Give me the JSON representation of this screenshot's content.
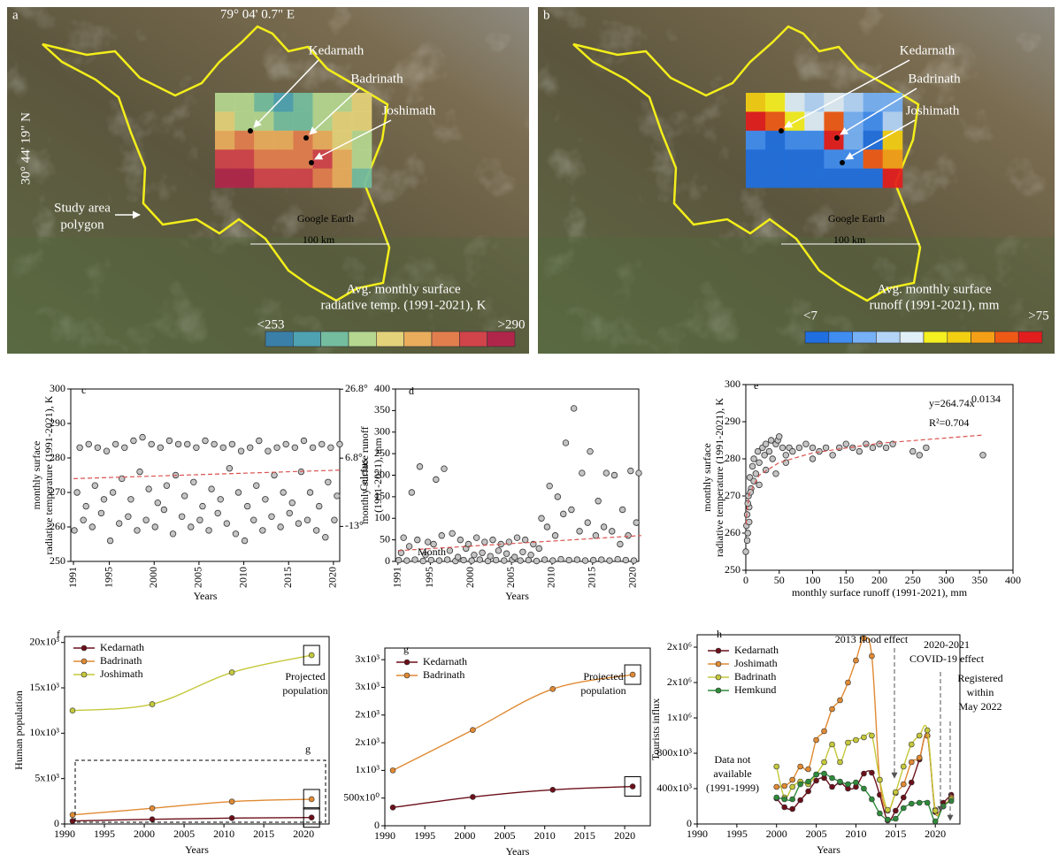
{
  "maps": [
    {
      "label": "a",
      "lon": "79° 04' 0.7\" E",
      "lat": "30° 44' 19\" N",
      "places": [
        "Kedarnath",
        "Badrinath",
        "Joshimath"
      ],
      "polygon_label": [
        "Study area",
        "polygon"
      ],
      "watermark": "Google Earth",
      "scale": "100 km",
      "legend_title": [
        "Avg. monthly surface",
        "radiative temp. (1991-2021), K"
      ],
      "legend_min": "<253",
      "legend_max": ">290",
      "legend_colors": [
        "#3a7fa8",
        "#4ea2b2",
        "#74bd9f",
        "#b5d78f",
        "#e4d27a",
        "#e9ad5c",
        "#e27e4e",
        "#d1444a",
        "#b0264a"
      ]
    },
    {
      "label": "b",
      "places": [
        "Kedarnath",
        "Badrinath",
        "Joshimath"
      ],
      "watermark": "Google Earth",
      "scale": "100 km",
      "legend_title": [
        "Avg. monthly surface",
        "runoff (1991-2021), mm"
      ],
      "legend_min": "<7",
      "legend_max": ">75",
      "legend_colors": [
        "#1f6fe0",
        "#3f8df0",
        "#76b0f5",
        "#b3d4f7",
        "#dfeef7",
        "#f5f020",
        "#f3cf12",
        "#f4a016",
        "#ee5a16",
        "#e21d1d"
      ]
    }
  ],
  "chart_data": [
    {
      "type": "scatter",
      "label": "c",
      "xlabel": "Years",
      "ylabel": [
        "monthly surface",
        "radiative temperature (1991-2021), K"
      ],
      "y2label": "Celcius",
      "x": [
        1991.1,
        1991.4,
        1991.7,
        1992.1,
        1992.4,
        1992.7,
        1993.1,
        1993.4,
        1993.7,
        1994.1,
        1994.4,
        1994.7,
        1995.1,
        1995.4,
        1995.7,
        1996.1,
        1996.4,
        1996.7,
        1997.1,
        1997.4,
        1997.7,
        1998.1,
        1998.4,
        1998.7,
        1999.1,
        1999.4,
        1999.7,
        2000.1,
        2000.4,
        2000.7,
        2001.1,
        2001.4,
        2001.7,
        2002.1,
        2002.4,
        2002.7,
        2003.1,
        2003.4,
        2003.7,
        2004.1,
        2004.4,
        2004.7,
        2005.1,
        2005.4,
        2005.7,
        2006.1,
        2006.4,
        2006.7,
        2007.1,
        2007.4,
        2007.7,
        2008.1,
        2008.4,
        2008.7,
        2009.1,
        2009.4,
        2009.7,
        2010.1,
        2010.4,
        2010.7,
        2011.1,
        2011.4,
        2011.7,
        2012.1,
        2012.4,
        2012.7,
        2013.1,
        2013.4,
        2013.7,
        2014.1,
        2014.4,
        2014.7,
        2015.1,
        2015.4,
        2015.7,
        2016.1,
        2016.4,
        2016.7,
        2017.1,
        2017.4,
        2017.7,
        2018.1,
        2018.4,
        2018.7,
        2019.1,
        2019.4,
        2019.7,
        2020.1,
        2020.4,
        2020.7
      ],
      "values": [
        259,
        270,
        283,
        262,
        266,
        284,
        260,
        272,
        283,
        264,
        268,
        282,
        256,
        270,
        284,
        261,
        274,
        283,
        263,
        268,
        285,
        259,
        276,
        286,
        262,
        271,
        284,
        260,
        267,
        283,
        265,
        272,
        285,
        258,
        275,
        284,
        263,
        269,
        284,
        260,
        273,
        283,
        262,
        266,
        285,
        259,
        271,
        284,
        264,
        268,
        283,
        261,
        277,
        284,
        258,
        270,
        282,
        256,
        266,
        283,
        262,
        272,
        285,
        259,
        268,
        282,
        263,
        275,
        283,
        260,
        270,
        284,
        264,
        267,
        283,
        261,
        276,
        285,
        262,
        270,
        283,
        259,
        266,
        284,
        257,
        273,
        283,
        262,
        269,
        284
      ],
      "trend": {
        "x": [
          1991,
          2021
        ],
        "y": [
          274,
          276.5
        ]
      },
      "xlim": [
        1990.7,
        2020.7
      ],
      "xticks": [
        1991,
        1995,
        2000,
        2005,
        2010,
        2015,
        2020
      ],
      "ylim": [
        250,
        300
      ],
      "yticks": [
        250,
        260,
        270,
        280,
        290,
        300
      ],
      "y2lim": [
        -23.15,
        26.85
      ],
      "y2ticks": [
        {
          "value": 26.8,
          "label": "26.8°"
        },
        {
          "value": 6.8,
          "label": "6.8°"
        },
        {
          "value": -13,
          "label": "-13°"
        }
      ]
    },
    {
      "type": "scatter",
      "label": "d",
      "xlabel": "Years",
      "ylabel": [
        "monthly surface runoff",
        "(1991-2021), mm"
      ],
      "x": [
        1991.1,
        1991.4,
        1991.7,
        1992.1,
        1992.4,
        1992.7,
        1993.1,
        1993.4,
        1993.7,
        1994.1,
        1994.4,
        1994.7,
        1995.1,
        1995.4,
        1995.7,
        1996.1,
        1996.4,
        1996.7,
        1997.1,
        1997.4,
        1997.7,
        1998.1,
        1998.4,
        1998.7,
        1999.1,
        1999.4,
        1999.7,
        2000.1,
        2000.4,
        2000.7,
        2001.1,
        2001.4,
        2001.7,
        2002.1,
        2002.4,
        2002.7,
        2003.1,
        2003.4,
        2003.7,
        2004.1,
        2004.4,
        2004.7,
        2005.1,
        2005.4,
        2005.7,
        2006.1,
        2006.4,
        2006.7,
        2007.1,
        2007.4,
        2007.7,
        2008.1,
        2008.4,
        2008.7,
        2009.1,
        2009.4,
        2009.7,
        2010.1,
        2010.4,
        2010.7,
        2011.1,
        2011.4,
        2011.7,
        2012.1,
        2012.4,
        2012.7,
        2013.1,
        2013.4,
        2013.7,
        2014.1,
        2014.4,
        2014.7,
        2015.1,
        2015.4,
        2015.7,
        2016.1,
        2016.4,
        2016.7,
        2017.1,
        2017.4,
        2017.7,
        2018.1,
        2018.4,
        2018.7,
        2019.1,
        2019.4,
        2019.7,
        2020.1,
        2020.4,
        2020.7
      ],
      "values": [
        3,
        20,
        55,
        2,
        35,
        160,
        4,
        50,
        220,
        1,
        15,
        45,
        3,
        40,
        190,
        2,
        60,
        215,
        4,
        25,
        65,
        1,
        10,
        50,
        3,
        30,
        40,
        2,
        15,
        55,
        4,
        20,
        45,
        1,
        12,
        50,
        3,
        25,
        40,
        2,
        18,
        45,
        4,
        10,
        55,
        2,
        22,
        50,
        3,
        15,
        40,
        1,
        30,
        100,
        4,
        80,
        175,
        2,
        60,
        150,
        5,
        110,
        275,
        3,
        120,
        355,
        4,
        70,
        205,
        2,
        90,
        255,
        3,
        60,
        140,
        4,
        80,
        205,
        2,
        70,
        200,
        5,
        40,
        120,
        3,
        60,
        210,
        2,
        90,
        205
      ],
      "trend": {
        "x": [
          1991,
          2021
        ],
        "y": [
          25,
          60
        ]
      },
      "annotations": [
        {
          "lines": [
            "Month"
          ],
          "color": "#999999"
        }
      ],
      "xlim": [
        1990.7,
        2020.7
      ],
      "xticks": [
        1991,
        1995,
        2000,
        2005,
        2010,
        2015,
        2020
      ],
      "ylim": [
        0,
        400
      ],
      "yticks": [
        0,
        50,
        100,
        150,
        200,
        250,
        300,
        350,
        400
      ]
    },
    {
      "type": "scatter",
      "label": "e",
      "xlabel": "monthly surface runoff (1991-2021), mm",
      "ylabel": [
        "monthly surface",
        "radiative temperature (1991-2021), K"
      ],
      "x": [
        0,
        2,
        1,
        3,
        2,
        5,
        4,
        8,
        6,
        10,
        12,
        15,
        18,
        20,
        25,
        28,
        30,
        35,
        38,
        40,
        45,
        48,
        50,
        55,
        60,
        65,
        70,
        80,
        90,
        100,
        110,
        120,
        130,
        140,
        150,
        160,
        170,
        180,
        190,
        200,
        210,
        220,
        5,
        3,
        7,
        12,
        20,
        30,
        250,
        260,
        270,
        355,
        45,
        60,
        100
      ],
      "values": [
        255,
        258,
        262,
        260,
        265,
        267,
        270,
        272,
        275,
        278,
        280,
        276,
        282,
        279,
        283,
        281,
        284,
        282,
        285,
        280,
        284,
        285,
        286,
        283,
        281,
        283,
        282,
        283,
        284,
        283,
        282,
        283,
        281,
        283,
        284,
        283,
        282,
        284,
        283,
        284,
        283,
        284,
        263,
        268,
        271,
        274,
        273,
        277,
        282,
        281,
        283,
        281,
        276,
        279,
        280
      ],
      "trend": {
        "x": [
          0.5,
          1,
          5,
          20,
          50,
          100,
          200,
          355
        ],
        "y": [
          262.3,
          264.74,
          270.5,
          275.6,
          279,
          281.6,
          284.2,
          286.4
        ]
      },
      "annotations": [
        {
          "lines": [
            "y=264.74x"
          ],
          "sup": "0.0134",
          "color": "#000000"
        },
        {
          "lines": [
            "R²=0.704"
          ],
          "color": "#000000"
        }
      ],
      "xlim": [
        0,
        400
      ],
      "xticks": [
        0,
        50,
        100,
        150,
        200,
        250,
        300,
        350,
        400
      ],
      "ylim": [
        250,
        300
      ],
      "yticks": [
        250,
        260,
        270,
        280,
        290,
        300
      ]
    },
    {
      "type": "line",
      "label": "f",
      "xlabel": "Years",
      "ylabel": "Human population",
      "x": [
        1991,
        2001,
        2011,
        2021
      ],
      "series": [
        {
          "name": "Kedarnath",
          "color": "#6b0f1a",
          "values": [
            330,
            520,
            650,
            710
          ]
        },
        {
          "name": "Badrinath",
          "color": "#e08a33",
          "values": [
            1000,
            1730,
            2470,
            2730
          ]
        },
        {
          "name": "Joshimath",
          "color": "#c4c83a",
          "values": [
            12500,
            13200,
            16700,
            18600
          ]
        }
      ],
      "annotations": [
        {
          "lines": [
            "Projected",
            "population"
          ],
          "color": "#c0262d"
        },
        {
          "lines": [
            "g"
          ],
          "color": "#000000"
        }
      ],
      "xlim": [
        1990,
        2023.2
      ],
      "xticks": [
        1990,
        1995,
        2000,
        2005,
        2010,
        2015,
        2020
      ],
      "ylim": [
        0,
        20650
      ],
      "yticks": [
        0,
        {
          "value": 5000,
          "label": "5x10³"
        },
        {
          "value": 10000,
          "label": "10x10³"
        },
        {
          "value": 15000,
          "label": "15x10³"
        },
        {
          "value": 20000,
          "label": "20x10³"
        }
      ]
    },
    {
      "type": "line",
      "label": "g",
      "xlabel": "Years",
      "x": [
        1991,
        2001,
        2011,
        2021
      ],
      "series": [
        {
          "name": "Kedarnath",
          "color": "#6b0f1a",
          "values": [
            330,
            520,
            650,
            710
          ]
        },
        {
          "name": "Badrinath",
          "color": "#e08a33",
          "values": [
            1000,
            1730,
            2470,
            2730
          ]
        }
      ],
      "annotations": [
        {
          "lines": [
            "Projected",
            "population"
          ],
          "color": "#c0262d"
        }
      ],
      "xlim": [
        1990,
        2023.2
      ],
      "xticks": [
        1990,
        1995,
        2000,
        2005,
        2010,
        2015,
        2020
      ],
      "ylim": [
        0,
        3210
      ],
      "yticks": [
        0,
        {
          "value": 500,
          "label": "500x10⁰"
        },
        {
          "value": 1000,
          "label": "1x10³"
        },
        {
          "value": 1500,
          "label": "2x10³"
        },
        {
          "value": 2000,
          "label": "2x10³"
        },
        {
          "value": 2500,
          "label": "3x10³"
        },
        {
          "value": 3000,
          "label": "3x10³"
        }
      ]
    },
    {
      "type": "line",
      "label": "h",
      "xlabel": "Years",
      "ylabel": "Tourists influx",
      "x": [
        2000,
        2001,
        2002,
        2003,
        2004,
        2005,
        2006,
        2007,
        2008,
        2009,
        2010,
        2011,
        2012,
        2013,
        2014,
        2015,
        2016,
        2017,
        2018,
        2019,
        2020,
        2021,
        2022
      ],
      "series": [
        {
          "name": "Kedarnath",
          "color": "#6b0f1a",
          "values": [
            290000,
            190000,
            170000,
            270000,
            370000,
            490000,
            520000,
            420000,
            470000,
            400000,
            420000,
            570000,
            580000,
            330000,
            40000,
            150000,
            300000,
            470000,
            730000,
            1000000,
            135000,
            240000,
            330000
          ]
        },
        {
          "name": "Joshimath",
          "color": "#e08a33",
          "values": [
            420000,
            430000,
            500000,
            650000,
            620000,
            950000,
            1050000,
            1300000,
            1400000,
            1600000,
            1850000,
            2100000,
            1900000,
            500000,
            150000,
            350000,
            450000,
            700000,
            750000,
            1000000,
            160000,
            200000,
            300000
          ]
        },
        {
          "name": "Badrinath",
          "color": "#c4c83a",
          "values": [
            650000,
            300000,
            420000,
            480000,
            450000,
            560000,
            700000,
            900000,
            700000,
            920000,
            950000,
            980000,
            1000000,
            500000,
            160000,
            360000,
            650000,
            900000,
            1000000,
            1060000,
            150000,
            200000,
            280000
          ]
        },
        {
          "name": "Hemkund",
          "color": "#2e8b3a",
          "values": [
            300000,
            280000,
            280000,
            450000,
            480000,
            560000,
            570000,
            520000,
            480000,
            450000,
            470000,
            400000,
            280000,
            120000,
            50000,
            60000,
            180000,
            230000,
            240000,
            240000,
            30000,
            200000,
            260000
          ]
        }
      ],
      "annotations": [
        {
          "lines": [
            "Data not",
            "available",
            "(1991-1999)"
          ],
          "color": "#000000"
        },
        {
          "lines": [
            "2013 flood effect"
          ],
          "color": "#c0262d"
        },
        {
          "lines": [
            "2020-2021",
            "COVID-19 effect"
          ],
          "color": "#c0262d"
        },
        {
          "lines": [
            "Registered",
            "within",
            "May 2022"
          ],
          "color": "#c0262d"
        }
      ],
      "xlim": [
        1990,
        2023.1
      ],
      "xticks": [
        1990,
        1995,
        2000,
        2005,
        2010,
        2015,
        2020
      ],
      "ylim": [
        0,
        2140000
      ],
      "yticks": [
        0,
        {
          "value": 400000,
          "label": "400x10³"
        },
        {
          "value": 800000,
          "label": "800x10³"
        },
        {
          "value": 1200000,
          "label": "1x10⁶"
        },
        {
          "value": 1600000,
          "label": "2x10⁶"
        },
        {
          "value": 2000000,
          "label": "2x10⁶"
        }
      ]
    }
  ]
}
